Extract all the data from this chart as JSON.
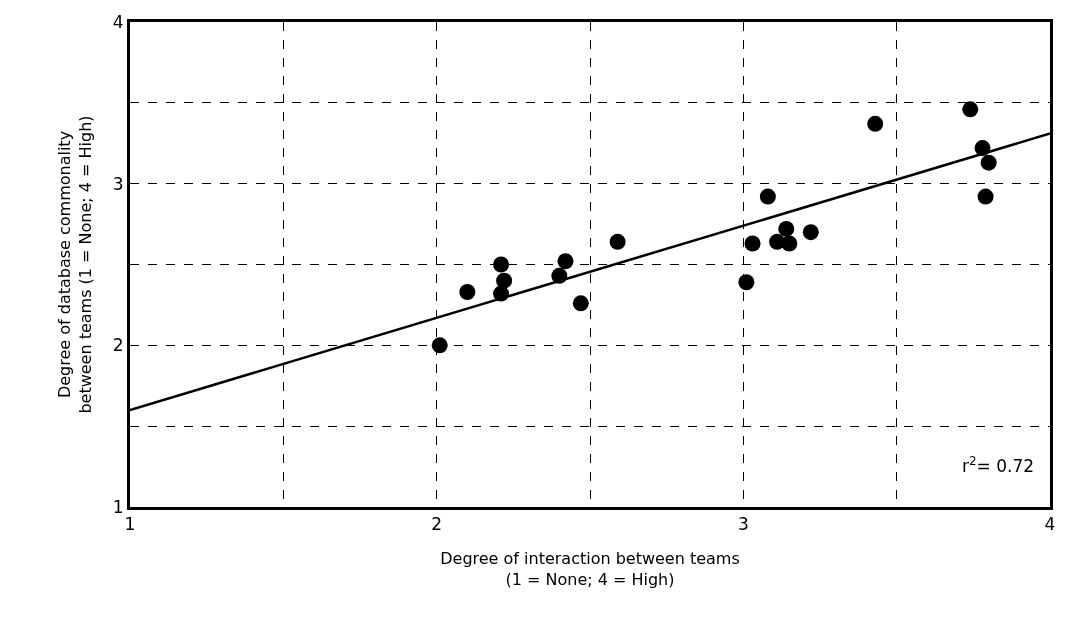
{
  "chart_data": {
    "type": "scatter",
    "xlabel": "Degree of interaction between teams\n(1 = None; 4 = High)",
    "ylabel": "Degree of database commonality\nbetween teams (1 = None; 4 = High)",
    "xlim": [
      1,
      4
    ],
    "ylim": [
      1,
      4
    ],
    "xticks": [
      1,
      {
        "value": 1.5,
        "label": null
      },
      2,
      {
        "value": 2.5,
        "label": null
      },
      3,
      {
        "value": 3.5,
        "label": null
      },
      4
    ],
    "yticks": [
      1,
      {
        "value": 1.5,
        "label": null
      },
      2,
      {
        "value": 2.5,
        "label": null
      },
      3,
      {
        "value": 3.5,
        "label": null
      },
      4
    ],
    "grid": true,
    "marker": "circle",
    "legend": false,
    "x": [
      2.01,
      2.1,
      2.21,
      2.22,
      2.21,
      2.4,
      2.42,
      2.47,
      2.59,
      3.01,
      3.03,
      3.08,
      3.11,
      3.14,
      3.15,
      3.22,
      3.43,
      3.74,
      3.78,
      3.8,
      3.79
    ],
    "series": [
      {
        "color": "#000000",
        "values": [
          2.0,
          2.33,
          2.5,
          2.4,
          2.32,
          2.43,
          2.52,
          2.26,
          2.64,
          2.39,
          2.63,
          2.92,
          2.64,
          2.72,
          2.63,
          2.7,
          3.37,
          3.46,
          3.22,
          3.13,
          2.92
        ]
      },
      {
        "type": "line",
        "color": "#000000",
        "line_style": "solid",
        "marker": "none",
        "x": [
          1,
          4
        ],
        "values": [
          1.6,
          3.31
        ]
      }
    ],
    "annotations": [
      {
        "text": "r$^{2}$= 0.72"
      }
    ]
  }
}
